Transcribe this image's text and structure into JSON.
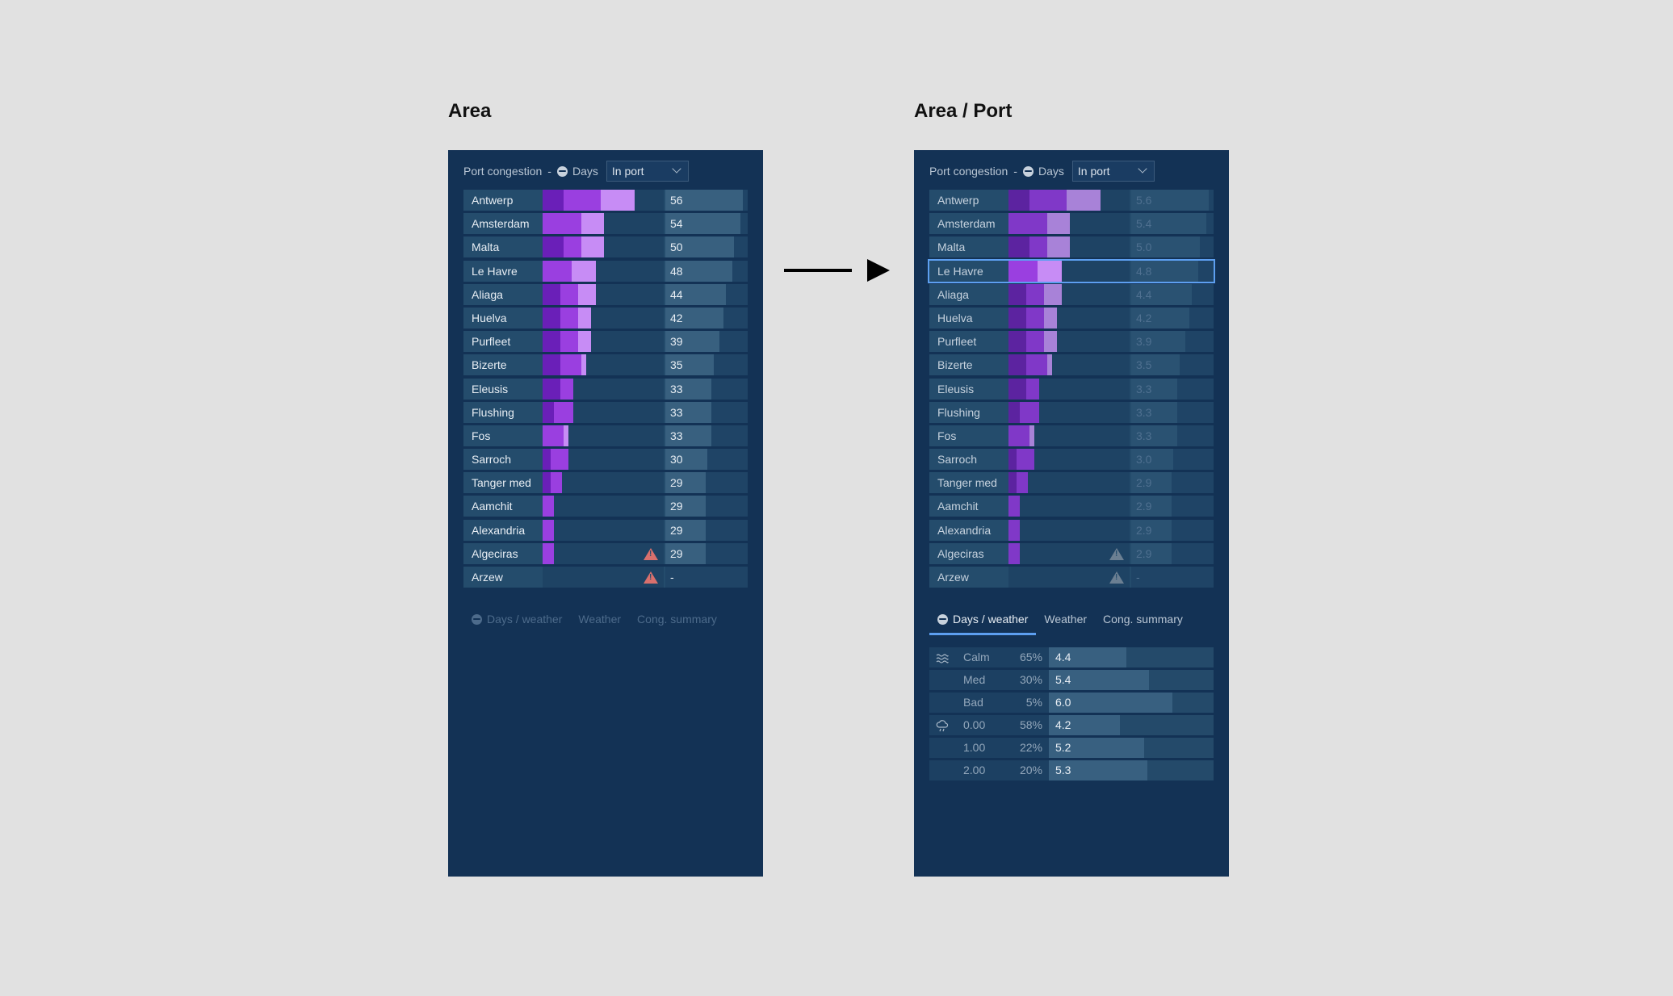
{
  "left": {
    "title": "Area",
    "header": {
      "label": "Port congestion",
      "sep": "-",
      "metric": "Days",
      "select": "In port"
    },
    "ports": [
      {
        "name": "Antwerp",
        "value": "56",
        "segs": [
          26,
          46,
          42
        ],
        "warn": false,
        "fill": 1.0
      },
      {
        "name": "Amsterdam",
        "value": "54",
        "segs": [
          0,
          48,
          28
        ],
        "warn": false,
        "fill": 0.97
      },
      {
        "name": "Malta",
        "value": "50",
        "segs": [
          26,
          22,
          28
        ],
        "warn": false,
        "fill": 0.89
      },
      {
        "name": "Le Havre",
        "value": "48",
        "segs": [
          0,
          36,
          30
        ],
        "warn": false,
        "fill": 0.86
      },
      {
        "name": "Aliaga",
        "value": "44",
        "segs": [
          22,
          22,
          22
        ],
        "warn": false,
        "fill": 0.78
      },
      {
        "name": "Huelva",
        "value": "42",
        "segs": [
          22,
          22,
          16
        ],
        "warn": false,
        "fill": 0.75
      },
      {
        "name": "Purfleet",
        "value": "39",
        "segs": [
          22,
          22,
          16
        ],
        "warn": false,
        "fill": 0.7
      },
      {
        "name": "Bizerte",
        "value": "35",
        "segs": [
          22,
          26,
          6
        ],
        "warn": false,
        "fill": 0.63
      },
      {
        "name": "Eleusis",
        "value": "33",
        "segs": [
          22,
          16,
          0
        ],
        "warn": false,
        "fill": 0.59
      },
      {
        "name": "Flushing",
        "value": "33",
        "segs": [
          14,
          24,
          0
        ],
        "warn": false,
        "fill": 0.59
      },
      {
        "name": "Fos",
        "value": "33",
        "segs": [
          0,
          26,
          6
        ],
        "warn": false,
        "fill": 0.59
      },
      {
        "name": "Sarroch",
        "value": "30",
        "segs": [
          10,
          22,
          0
        ],
        "warn": false,
        "fill": 0.54
      },
      {
        "name": "Tanger med",
        "value": "29",
        "segs": [
          10,
          14,
          0
        ],
        "warn": false,
        "fill": 0.52
      },
      {
        "name": "Aamchit",
        "value": "29",
        "segs": [
          0,
          14,
          0
        ],
        "warn": false,
        "fill": 0.52
      },
      {
        "name": "Alexandria",
        "value": "29",
        "segs": [
          0,
          14,
          0
        ],
        "warn": false,
        "fill": 0.52
      },
      {
        "name": "Algeciras",
        "value": "29",
        "segs": [
          0,
          14,
          0
        ],
        "warn": true,
        "fill": 0.52
      },
      {
        "name": "Arzew",
        "value": "-",
        "segs": [
          0,
          0,
          0
        ],
        "warn": true,
        "fill": 0
      }
    ],
    "tabs": [
      "Days / weather",
      "Weather",
      "Cong. summary"
    ]
  },
  "right": {
    "title": "Area / Port",
    "header": {
      "label": "Port congestion",
      "sep": "-",
      "metric": "Days",
      "select": "In port"
    },
    "selected_index": 3,
    "ports": [
      {
        "name": "Antwerp",
        "value": "5.6",
        "segs": [
          26,
          46,
          42
        ],
        "warn": false,
        "fill": 1.0
      },
      {
        "name": "Amsterdam",
        "value": "5.4",
        "segs": [
          0,
          48,
          28
        ],
        "warn": false,
        "fill": 0.97
      },
      {
        "name": "Malta",
        "value": "5.0",
        "segs": [
          26,
          22,
          28
        ],
        "warn": false,
        "fill": 0.89
      },
      {
        "name": "Le Havre",
        "value": "4.8",
        "segs": [
          0,
          36,
          30
        ],
        "warn": false,
        "fill": 0.86
      },
      {
        "name": "Aliaga",
        "value": "4.4",
        "segs": [
          22,
          22,
          22
        ],
        "warn": false,
        "fill": 0.78
      },
      {
        "name": "Huelva",
        "value": "4.2",
        "segs": [
          22,
          22,
          16
        ],
        "warn": false,
        "fill": 0.75
      },
      {
        "name": "Purfleet",
        "value": "3.9",
        "segs": [
          22,
          22,
          16
        ],
        "warn": false,
        "fill": 0.7
      },
      {
        "name": "Bizerte",
        "value": "3.5",
        "segs": [
          22,
          26,
          6
        ],
        "warn": false,
        "fill": 0.63
      },
      {
        "name": "Eleusis",
        "value": "3.3",
        "segs": [
          22,
          16,
          0
        ],
        "warn": false,
        "fill": 0.59
      },
      {
        "name": "Flushing",
        "value": "3.3",
        "segs": [
          14,
          24,
          0
        ],
        "warn": false,
        "fill": 0.59
      },
      {
        "name": "Fos",
        "value": "3.3",
        "segs": [
          0,
          26,
          6
        ],
        "warn": false,
        "fill": 0.59
      },
      {
        "name": "Sarroch",
        "value": "3.0",
        "segs": [
          10,
          22,
          0
        ],
        "warn": false,
        "fill": 0.54
      },
      {
        "name": "Tanger med",
        "value": "2.9",
        "segs": [
          10,
          14,
          0
        ],
        "warn": false,
        "fill": 0.52
      },
      {
        "name": "Aamchit",
        "value": "2.9",
        "segs": [
          0,
          14,
          0
        ],
        "warn": false,
        "fill": 0.52
      },
      {
        "name": "Alexandria",
        "value": "2.9",
        "segs": [
          0,
          14,
          0
        ],
        "warn": false,
        "fill": 0.52
      },
      {
        "name": "Algeciras",
        "value": "2.9",
        "segs": [
          0,
          14,
          0
        ],
        "warn": true,
        "fill": 0.52
      },
      {
        "name": "Arzew",
        "value": "-",
        "segs": [
          0,
          0,
          0
        ],
        "warn": true,
        "fill": 0
      }
    ],
    "tabs": [
      "Days / weather",
      "Weather",
      "Cong. summary"
    ],
    "active_tab": 0,
    "weather": [
      {
        "icon": "waves-icon",
        "label": "Calm",
        "pct": "65%",
        "value": "4.4",
        "fill": 0.47
      },
      {
        "icon": "",
        "label": "Med",
        "pct": "30%",
        "value": "5.4",
        "fill": 0.61
      },
      {
        "icon": "",
        "label": "Bad",
        "pct": "5%",
        "value": "6.0",
        "fill": 0.75
      },
      {
        "icon": "cloud-rain-icon",
        "label": "0.00",
        "pct": "58%",
        "value": "4.2",
        "fill": 0.43
      },
      {
        "icon": "",
        "label": "1.00",
        "pct": "22%",
        "value": "5.2",
        "fill": 0.58
      },
      {
        "icon": "",
        "label": "2.00",
        "pct": "20%",
        "value": "5.3",
        "fill": 0.6
      }
    ]
  },
  "colors": {
    "seg_dark": "#6a1fb8",
    "seg_mid": "#9a3fe0",
    "seg_light": "#c78cf5",
    "seg_dim_dark": "#5c23a0",
    "seg_dim_mid": "#8038c8",
    "seg_dim_light": "#a882d8",
    "selected_outline": "#5d9ff0"
  }
}
